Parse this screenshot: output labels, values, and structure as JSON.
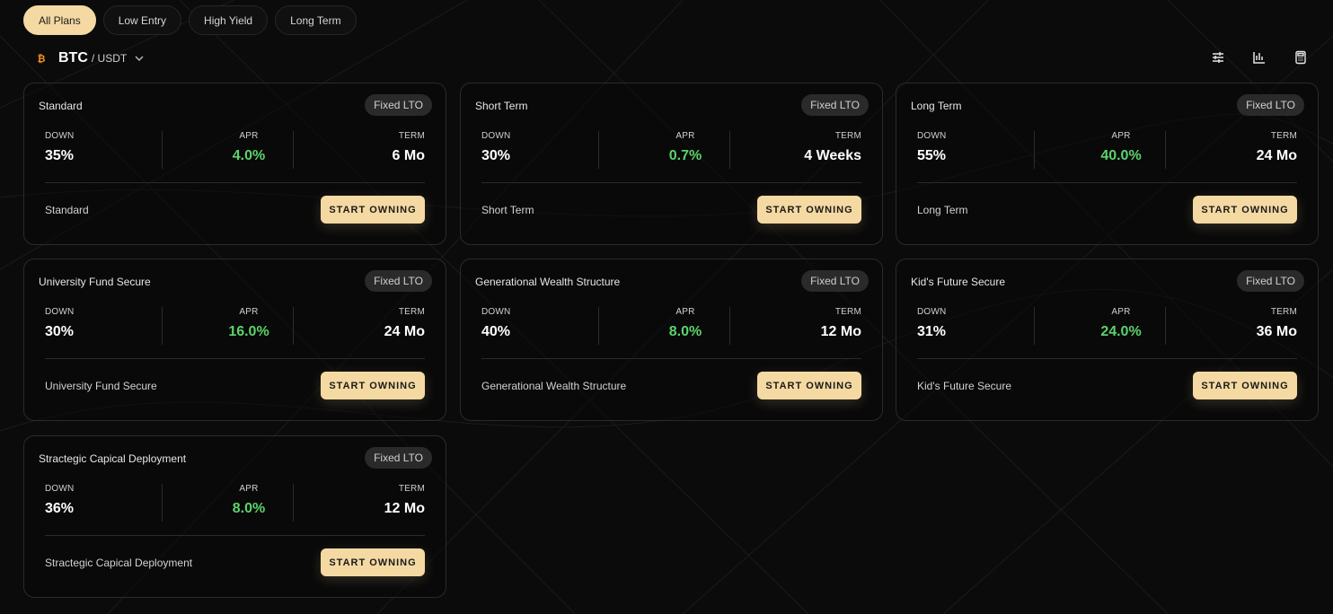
{
  "filters": [
    {
      "label": "All Plans",
      "active": true
    },
    {
      "label": "Low Entry",
      "active": false
    },
    {
      "label": "High Yield",
      "active": false
    },
    {
      "label": "Long Term",
      "active": false
    }
  ],
  "pair": {
    "base": "BTC",
    "quote": "/ USDT",
    "icon": "bitcoin-icon"
  },
  "toolbar": {
    "icons": [
      "sliders-icon",
      "bar-chart-icon",
      "calculator-icon"
    ]
  },
  "labels": {
    "down": "DOWN",
    "apr": "APR",
    "term": "TERM",
    "button": "START OWNING"
  },
  "colors": {
    "accent": "#f5d9a2",
    "positive": "#5bd36b",
    "background": "#0b0b0b"
  },
  "plans": [
    {
      "title": "Standard",
      "badge": "Fixed LTO",
      "down": "35%",
      "apr": "4.0%",
      "term": "6 Mo",
      "footer": "Standard"
    },
    {
      "title": "Short Term",
      "badge": "Fixed LTO",
      "down": "30%",
      "apr": "0.7%",
      "term": "4 Weeks",
      "footer": "Short Term"
    },
    {
      "title": "Long Term",
      "badge": "Fixed LTO",
      "down": "55%",
      "apr": "40.0%",
      "term": "24 Mo",
      "footer": "Long Term"
    },
    {
      "title": "University Fund Secure",
      "badge": "Fixed LTO",
      "down": "30%",
      "apr": "16.0%",
      "term": "24 Mo",
      "footer": "University Fund Secure"
    },
    {
      "title": "Generational Wealth Structure",
      "badge": "Fixed LTO",
      "down": "40%",
      "apr": "8.0%",
      "term": "12 Mo",
      "footer": "Generational Wealth Structure"
    },
    {
      "title": "Kid's Future Secure",
      "badge": "Fixed LTO",
      "down": "31%",
      "apr": "24.0%",
      "term": "36 Mo",
      "footer": "Kid's Future Secure"
    },
    {
      "title": "Stractegic Capical Deployment",
      "badge": "Fixed LTO",
      "down": "36%",
      "apr": "8.0%",
      "term": "12 Mo",
      "footer": "Stractegic Capical Deployment"
    }
  ]
}
